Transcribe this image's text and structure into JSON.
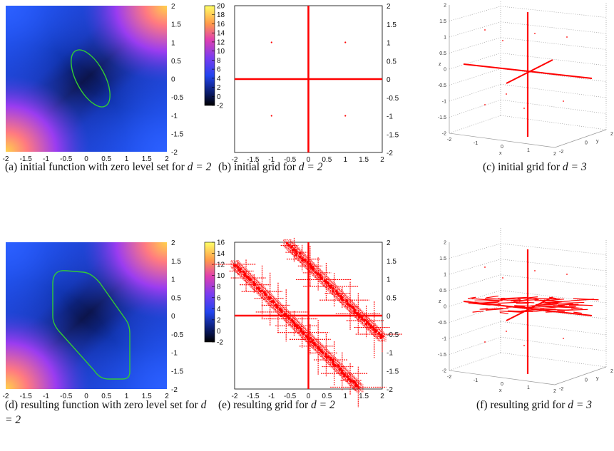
{
  "captions": {
    "a": {
      "label": "(a)",
      "text": "initial function with zero level set for",
      "math": "d = 2"
    },
    "b": {
      "label": "(b)",
      "text": "initial grid for",
      "math": "d = 2"
    },
    "c": {
      "label": "(c)",
      "text": "initial grid for",
      "math": "d = 3"
    },
    "d": {
      "label": "(d)",
      "text": "resulting function with zero level set for",
      "math": "d = 2"
    },
    "e": {
      "label": "(e)",
      "text": "resulting grid for",
      "math": "d = 2"
    },
    "f": {
      "label": "(f)",
      "text": "resulting grid for",
      "math": "d = 3"
    }
  },
  "chart_data": [
    {
      "type": "heatmap",
      "panel": "a",
      "x_ticks": [
        "-2",
        "-1.5",
        "-1",
        "-0.5",
        "0",
        "0.5",
        "1",
        "1.5",
        "2"
      ],
      "y_ticks": [
        "2",
        "1.5",
        "1",
        "0.5",
        "0",
        "-0.5",
        "-1",
        "-1.5",
        "-2"
      ],
      "xlim": [
        -2,
        2
      ],
      "ylim": [
        -2,
        2
      ],
      "colorbar_ticks": [
        "20",
        "18",
        "16",
        "14",
        "12",
        "10",
        "8",
        "6",
        "4",
        "2",
        "0",
        "-2"
      ],
      "colorbar_range": [
        -2,
        20
      ],
      "contour": {
        "level": 0,
        "color": "#33cc33",
        "shape": "ellipse",
        "center": [
          0,
          0
        ],
        "extent_x": [
          -0.6,
          0.6
        ],
        "extent_y": [
          -0.7,
          0.7
        ]
      }
    },
    {
      "type": "scatter",
      "panel": "b",
      "x_ticks": [
        "-2",
        "-1.5",
        "-1",
        "-0.5",
        "0",
        "0.5",
        "1",
        "1.5",
        "2"
      ],
      "y_ticks": [
        "2",
        "1.5",
        "1",
        "0.5",
        "0",
        "-0.5",
        "-1",
        "-1.5",
        "-2"
      ],
      "xlim": [
        -2,
        2
      ],
      "ylim": [
        -2,
        2
      ],
      "points": [
        [
          -1,
          1
        ],
        [
          1,
          1
        ],
        [
          -1,
          -1
        ],
        [
          1,
          -1
        ]
      ],
      "lines": [
        [
          [
            -2,
            0
          ],
          [
            2,
            0
          ]
        ],
        [
          [
            0,
            -2
          ],
          [
            0,
            2
          ]
        ]
      ],
      "color": "#ff0000"
    },
    {
      "type": "scatter",
      "panel": "c",
      "x_ticks": [
        "-2",
        "-1",
        "0",
        "1",
        "2"
      ],
      "y_ticks": [
        "-2",
        "0",
        "2"
      ],
      "z_ticks": [
        "2",
        "1.5",
        "1",
        "0.5",
        "0",
        "-0.5",
        "-1",
        "-1.5",
        "-2"
      ],
      "xlabel": "x",
      "ylabel": "y",
      "zlabel": "z",
      "color": "#ff0000"
    },
    {
      "type": "heatmap",
      "panel": "d",
      "x_ticks": [
        "-2",
        "-1.5",
        "-1",
        "-0.5",
        "0",
        "0.5",
        "1",
        "1.5",
        "2"
      ],
      "y_ticks": [
        "2",
        "1.5",
        "1",
        "0.5",
        "0",
        "-0.5",
        "-1",
        "-1.5",
        "-2"
      ],
      "xlim": [
        -2,
        2
      ],
      "ylim": [
        -2,
        2
      ],
      "colorbar_ticks": [
        "16",
        "14",
        "12",
        "10",
        "8",
        "6",
        "4",
        "2",
        "0",
        "-2"
      ],
      "colorbar_range": [
        -2,
        16
      ],
      "contour": {
        "level": 0,
        "color": "#33cc33",
        "shape": "rounded-hexagon",
        "vertices": [
          [
            -1,
            1
          ],
          [
            -1,
            -0.2
          ],
          [
            0,
            -1.5
          ],
          [
            1,
            -1.5
          ],
          [
            1,
            -0.3
          ],
          [
            0,
            1.5
          ]
        ]
      }
    },
    {
      "type": "scatter",
      "panel": "e",
      "x_ticks": [
        "-2",
        "-1.5",
        "-1",
        "-0.5",
        "0",
        "0.5",
        "1",
        "1.5",
        "2"
      ],
      "y_ticks": [
        "2",
        "1.5",
        "1",
        "0.5",
        "0",
        "-0.5",
        "-1",
        "-1.5",
        "-2"
      ],
      "xlim": [
        -2,
        2
      ],
      "ylim": [
        -2,
        2
      ],
      "color": "#ff0000",
      "bands": [
        {
          "slope": -1,
          "intercept": 1.4
        },
        {
          "slope": -1,
          "intercept": -0.6
        }
      ]
    },
    {
      "type": "scatter",
      "panel": "f",
      "x_ticks": [
        "-2",
        "-1",
        "0",
        "1",
        "2"
      ],
      "y_ticks": [
        "-2",
        "0",
        "2"
      ],
      "z_ticks": [
        "2",
        "1.5",
        "1",
        "0.5",
        "0",
        "-0.5",
        "-1",
        "-1.5",
        "-2"
      ],
      "xlabel": "x",
      "ylabel": "y",
      "zlabel": "z",
      "color": "#ff0000"
    }
  ]
}
